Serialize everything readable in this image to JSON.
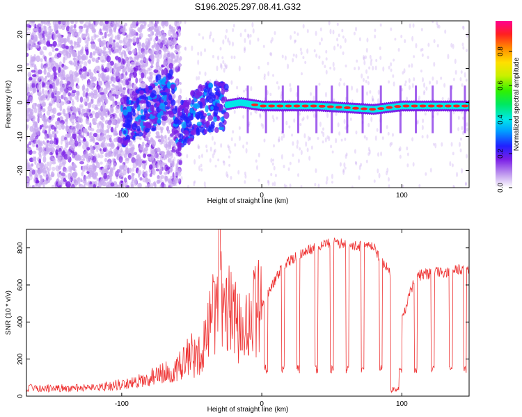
{
  "title": "S196.2025.297.08.41.G32",
  "chart_data": [
    {
      "type": "heatmap",
      "xlabel": "Height of straight line (km)",
      "ylabel": "Frequency (Hz)",
      "xlim": [
        -168,
        148
      ],
      "ylim": [
        -25,
        24
      ],
      "xticks": [
        -100,
        0,
        100
      ],
      "yticks": [
        -20,
        -10,
        0,
        10,
        20
      ],
      "ridge_profile": [
        {
          "x": -100,
          "y": -6
        },
        {
          "x": -80,
          "y": -2
        },
        {
          "x": -65,
          "y": 4
        },
        {
          "x": -60,
          "y": -8
        },
        {
          "x": -45,
          "y": -2
        },
        {
          "x": -30,
          "y": -1
        },
        {
          "x": -15,
          "y": 0
        },
        {
          "x": 0,
          "y": -1
        },
        {
          "x": 40,
          "y": -1
        },
        {
          "x": 80,
          "y": -2
        },
        {
          "x": 100,
          "y": -1
        },
        {
          "x": 148,
          "y": -1
        }
      ],
      "colorbar": {
        "label": "Normalized spectral amplitude",
        "ticks": [
          "0.0",
          "0.2",
          "0.4",
          "0.6",
          "0.8"
        ],
        "range": [
          0,
          0.98
        ]
      }
    },
    {
      "type": "line",
      "xlabel": "Height of straight line (km)",
      "ylabel": "SNR (10 * v/v)",
      "xlim": [
        -168,
        148
      ],
      "ylim": [
        0,
        900
      ],
      "xticks": [
        -100,
        0,
        100
      ],
      "yticks": [
        0,
        200,
        400,
        600,
        800
      ],
      "color": "#ee3030",
      "envelope": [
        {
          "x": -168,
          "y": 35
        },
        {
          "x": -120,
          "y": 35
        },
        {
          "x": -90,
          "y": 60
        },
        {
          "x": -60,
          "y": 120
        },
        {
          "x": -42,
          "y": 250
        },
        {
          "x": -30,
          "y": 550
        },
        {
          "x": -15,
          "y": 350
        },
        {
          "x": 0,
          "y": 500
        },
        {
          "x": 15,
          "y": 700
        },
        {
          "x": 30,
          "y": 780
        },
        {
          "x": 50,
          "y": 830
        },
        {
          "x": 80,
          "y": 800
        },
        {
          "x": 95,
          "y": 620
        },
        {
          "x": 100,
          "y": 420
        },
        {
          "x": 110,
          "y": 650
        },
        {
          "x": 148,
          "y": 690
        }
      ],
      "dropouts_x": [
        -10,
        3,
        15,
        26,
        39,
        50,
        61,
        72,
        85,
        99,
        110,
        122,
        135,
        145
      ]
    }
  ]
}
